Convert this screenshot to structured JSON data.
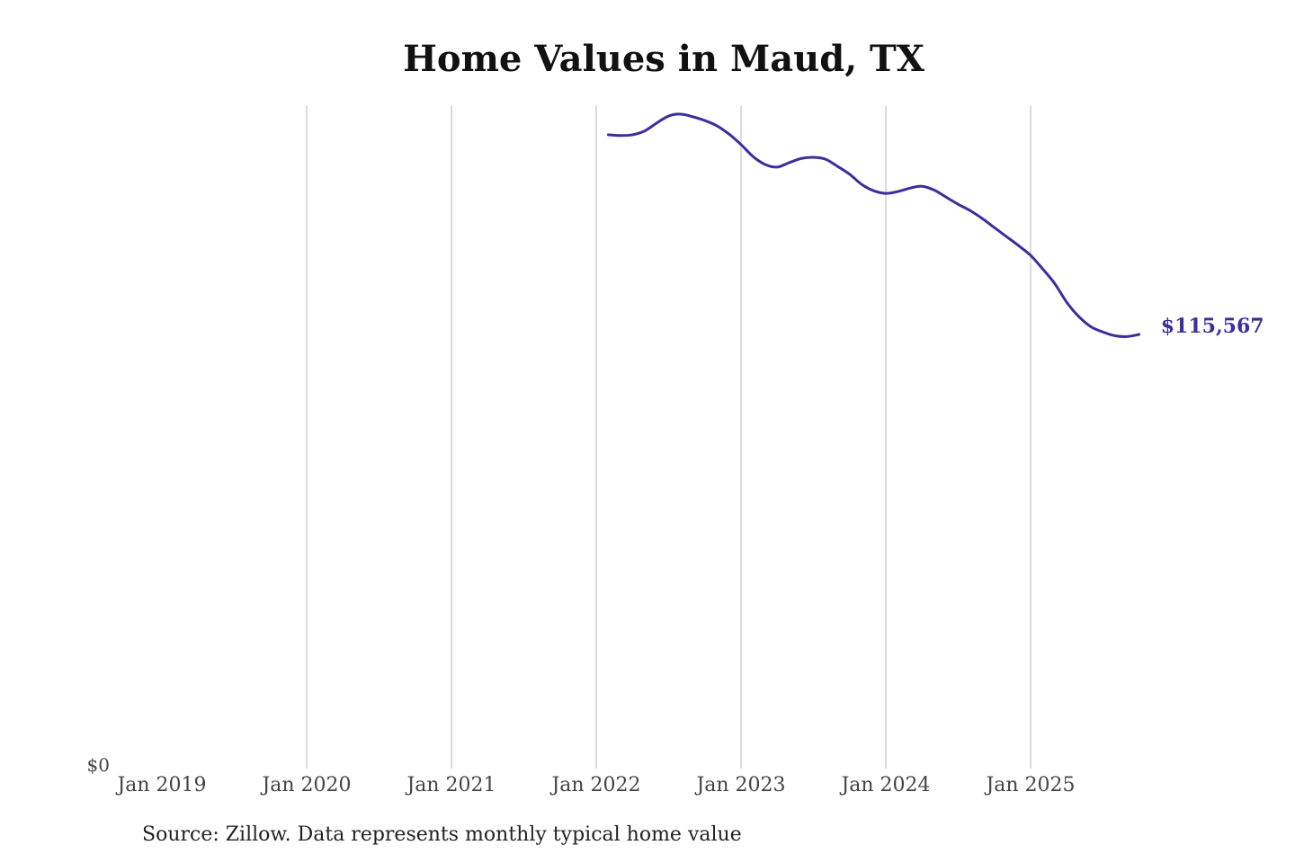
{
  "chart_data": {
    "type": "line",
    "title": "Home Values in Maud, TX",
    "source": "Source: Zillow. Data represents monthly typical home value",
    "xlabel": "",
    "ylabel": "",
    "x_ticks": [
      "Jan 2019",
      "Jan 2020",
      "Jan 2021",
      "Jan 2022",
      "Jan 2023",
      "Jan 2024",
      "Jan 2025"
    ],
    "y_ticks": [
      "$0"
    ],
    "xlim": [
      "2019-01",
      "2025-10"
    ],
    "ylim": [
      0,
      176000
    ],
    "grid": "vertical",
    "line_color": "#3a2f9e",
    "end_label": "$115,567",
    "series": [
      {
        "x": [
          "2022-02",
          "2022-03",
          "2022-04",
          "2022-05",
          "2022-06",
          "2022-07",
          "2022-08",
          "2022-09",
          "2022-10",
          "2022-11",
          "2022-12",
          "2023-01",
          "2023-02",
          "2023-03",
          "2023-04",
          "2023-05",
          "2023-06",
          "2023-07",
          "2023-08",
          "2023-09",
          "2023-10",
          "2023-11",
          "2023-12",
          "2024-01",
          "2024-02",
          "2024-03",
          "2024-04",
          "2024-05",
          "2024-06",
          "2024-07",
          "2024-08",
          "2024-09",
          "2024-10",
          "2024-11",
          "2024-12",
          "2025-01",
          "2025-02",
          "2025-03",
          "2025-04",
          "2025-05",
          "2025-06",
          "2025-07",
          "2025-08",
          "2025-09",
          "2025-10"
        ],
        "values": [
          168700,
          168500,
          168700,
          169700,
          171800,
          173700,
          174200,
          173500,
          172500,
          171100,
          168900,
          166100,
          162900,
          160800,
          160100,
          161300,
          162400,
          162700,
          162200,
          160300,
          158200,
          155500,
          153800,
          153100,
          153600,
          154500,
          155000,
          154000,
          152100,
          150200,
          148500,
          146400,
          144000,
          141600,
          139200,
          136600,
          133000,
          129100,
          124100,
          120300,
          117600,
          116200,
          115200,
          115000,
          115567
        ]
      }
    ]
  }
}
